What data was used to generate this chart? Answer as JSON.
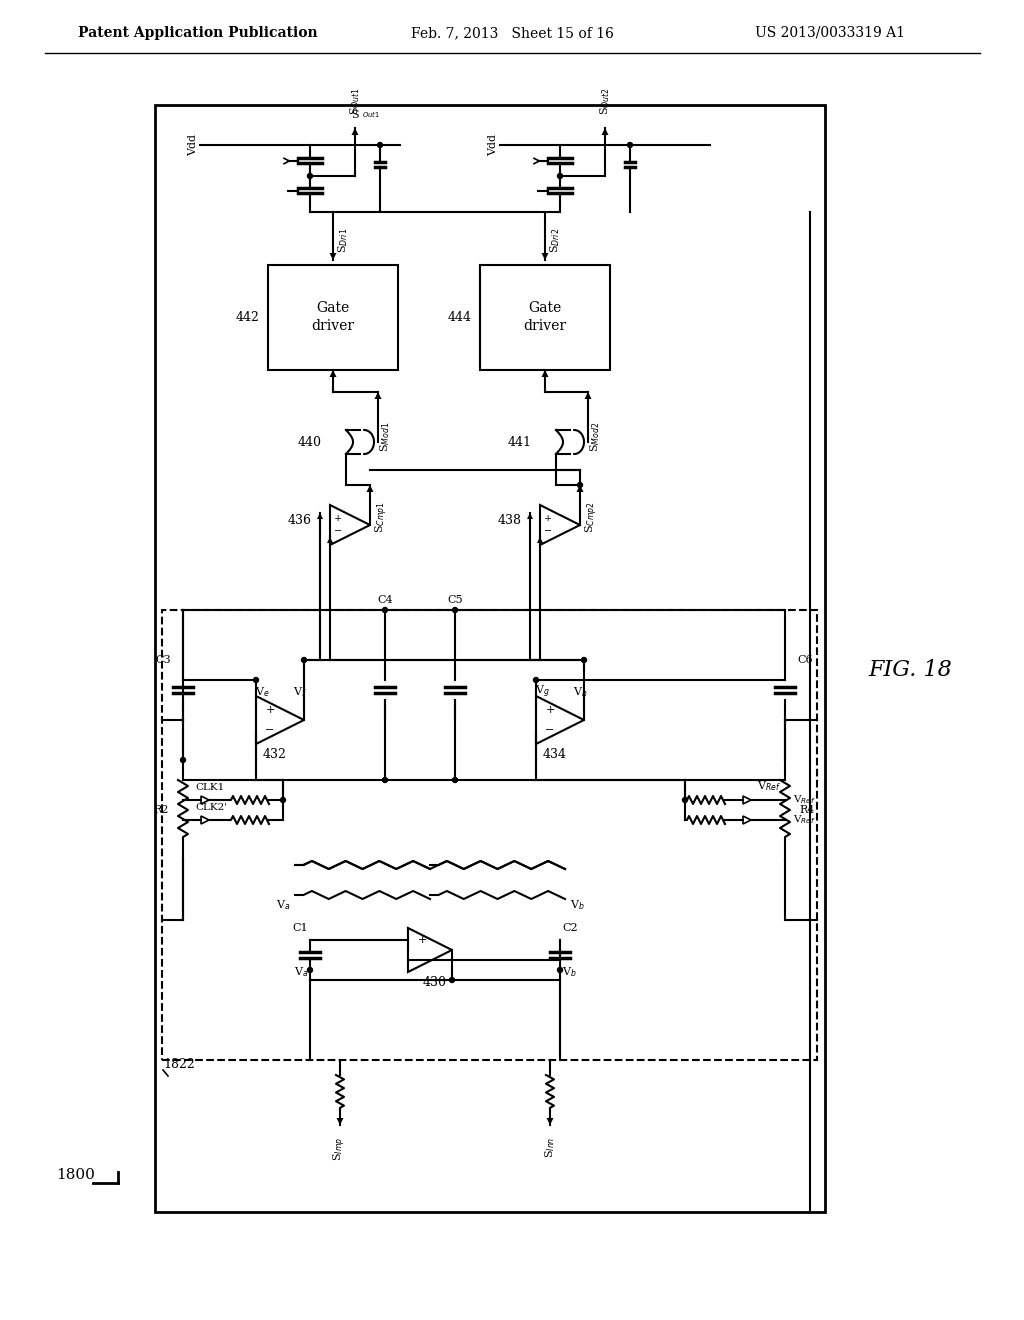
{
  "header_left": "Patent Application Publication",
  "header_center": "Feb. 7, 2013   Sheet 15 of 16",
  "header_right": "US 2013/0033319 A1",
  "fig_label": "FIG. 18",
  "label_1800": "1800",
  "label_1822": "1822",
  "bg_color": "#ffffff"
}
